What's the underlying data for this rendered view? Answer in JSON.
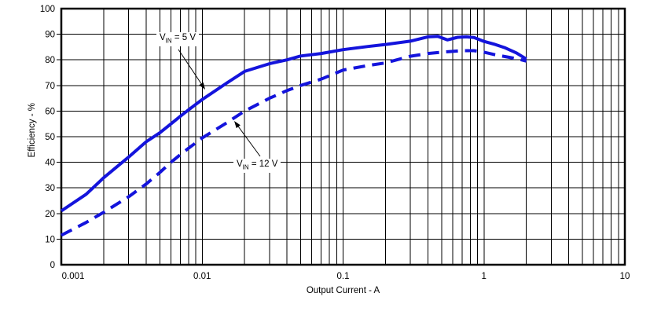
{
  "chart_data": {
    "type": "line",
    "title": "",
    "x_scale": "log",
    "xlim": [
      0.001,
      10
    ],
    "ylim": [
      0,
      100
    ],
    "grid": "full black grid, log minor verticals, horizontal every 10",
    "legend_position": "inline annotations with arrows",
    "x_axis": {
      "label": "Output Current - A",
      "tick_labels": [
        "0.001",
        "0.01",
        "0.1",
        "1",
        "10"
      ],
      "tick_values": [
        0.001,
        0.01,
        0.1,
        1,
        10
      ]
    },
    "y_axis": {
      "label": "Efficiency - %",
      "tick_labels": [
        "0",
        "10",
        "20",
        "30",
        "40",
        "50",
        "60",
        "70",
        "80",
        "90",
        "100"
      ],
      "tick_values": [
        0,
        10,
        20,
        30,
        40,
        50,
        60,
        70,
        80,
        90,
        100
      ]
    },
    "line_color": "#1414dc",
    "series": [
      {
        "name": "VIN = 5 V",
        "style": "solid",
        "color": "#1414dc",
        "points": [
          [
            0.001,
            21
          ],
          [
            0.0015,
            27.5
          ],
          [
            0.002,
            34
          ],
          [
            0.003,
            42
          ],
          [
            0.004,
            48
          ],
          [
            0.005,
            51.5
          ],
          [
            0.006,
            55
          ],
          [
            0.007,
            58
          ],
          [
            0.008,
            60.5
          ],
          [
            0.01,
            64.5
          ],
          [
            0.015,
            71
          ],
          [
            0.02,
            75.5
          ],
          [
            0.03,
            78.5
          ],
          [
            0.04,
            80
          ],
          [
            0.05,
            81.5
          ],
          [
            0.07,
            82.5
          ],
          [
            0.1,
            84
          ],
          [
            0.15,
            85.2
          ],
          [
            0.2,
            86
          ],
          [
            0.3,
            87.3
          ],
          [
            0.4,
            89
          ],
          [
            0.47,
            89.2
          ],
          [
            0.55,
            87.8
          ],
          [
            0.65,
            88.8
          ],
          [
            0.75,
            89
          ],
          [
            0.85,
            88.7
          ],
          [
            1.0,
            87.2
          ],
          [
            1.2,
            86
          ],
          [
            1.4,
            84.8
          ],
          [
            1.7,
            82.7
          ],
          [
            2.0,
            80.3
          ]
        ]
      },
      {
        "name": "VIN = 12 V",
        "style": "dashed",
        "color": "#1414dc",
        "points": [
          [
            0.001,
            11.5
          ],
          [
            0.0015,
            16.5
          ],
          [
            0.002,
            20.5
          ],
          [
            0.003,
            26.5
          ],
          [
            0.004,
            31.5
          ],
          [
            0.005,
            36
          ],
          [
            0.006,
            40
          ],
          [
            0.007,
            43
          ],
          [
            0.008,
            45.5
          ],
          [
            0.01,
            49.5
          ],
          [
            0.015,
            55.5
          ],
          [
            0.02,
            60
          ],
          [
            0.03,
            65
          ],
          [
            0.04,
            68
          ],
          [
            0.05,
            70
          ],
          [
            0.07,
            72.5
          ],
          [
            0.1,
            76
          ],
          [
            0.15,
            77.8
          ],
          [
            0.2,
            78.8
          ],
          [
            0.3,
            81.4
          ],
          [
            0.4,
            82.5
          ],
          [
            0.5,
            83
          ],
          [
            0.7,
            83.6
          ],
          [
            0.85,
            83.6
          ],
          [
            1.0,
            83
          ],
          [
            1.2,
            82
          ],
          [
            1.5,
            81
          ],
          [
            1.75,
            80.3
          ],
          [
            2.0,
            79.5
          ]
        ]
      }
    ],
    "annotations": [
      {
        "pre": "V",
        "sub": "IN",
        "post": " = 5 V",
        "full_text": "VIN = 5 V",
        "series": "VIN = 5 V",
        "arrow_points_to": {
          "x": 0.011,
          "y": 67.5
        }
      },
      {
        "pre": "V",
        "sub": "IN",
        "post": " = 12 V",
        "full_text": "VIN = 12 V",
        "series": "VIN = 12 V",
        "arrow_points_to": {
          "x": 0.016,
          "y": 57
        }
      }
    ]
  }
}
